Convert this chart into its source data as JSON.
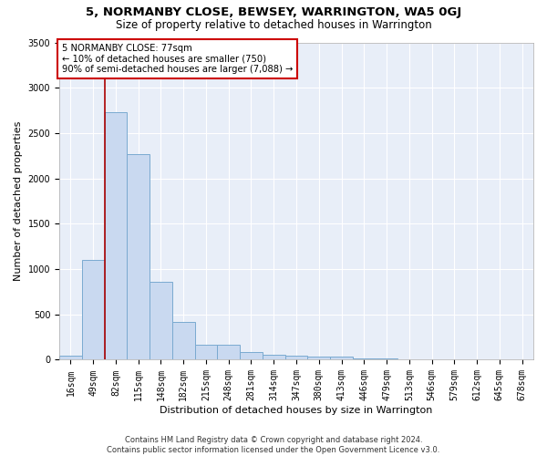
{
  "title": "5, NORMANBY CLOSE, BEWSEY, WARRINGTON, WA5 0GJ",
  "subtitle": "Size of property relative to detached houses in Warrington",
  "xlabel": "Distribution of detached houses by size in Warrington",
  "ylabel": "Number of detached properties",
  "footer_line1": "Contains HM Land Registry data © Crown copyright and database right 2024.",
  "footer_line2": "Contains public sector information licensed under the Open Government Licence v3.0.",
  "categories": [
    "16sqm",
    "49sqm",
    "82sqm",
    "115sqm",
    "148sqm",
    "182sqm",
    "215sqm",
    "248sqm",
    "281sqm",
    "314sqm",
    "347sqm",
    "380sqm",
    "413sqm",
    "446sqm",
    "479sqm",
    "513sqm",
    "546sqm",
    "579sqm",
    "612sqm",
    "645sqm",
    "678sqm"
  ],
  "values": [
    50,
    1100,
    2730,
    2270,
    860,
    415,
    170,
    170,
    90,
    60,
    50,
    35,
    30,
    15,
    10,
    5,
    3,
    2,
    2,
    1,
    1
  ],
  "bar_color": "#c9d9f0",
  "bar_edgecolor": "#7aaad0",
  "vline_color": "#aa0000",
  "vline_x": 2.0,
  "annotation_line1": "5 NORMANBY CLOSE: 77sqm",
  "annotation_line2": "← 10% of detached houses are smaller (750)",
  "annotation_line3": "90% of semi-detached houses are larger (7,088) →",
  "annotation_box_edgecolor": "#cc0000",
  "ylim": [
    0,
    3500
  ],
  "yticks": [
    0,
    500,
    1000,
    1500,
    2000,
    2500,
    3000,
    3500
  ],
  "plot_bg_color": "#e8eef8",
  "grid_color": "#ffffff",
  "title_fontsize": 9.5,
  "subtitle_fontsize": 8.5,
  "axis_label_fontsize": 8,
  "tick_fontsize": 7,
  "footer_fontsize": 6
}
